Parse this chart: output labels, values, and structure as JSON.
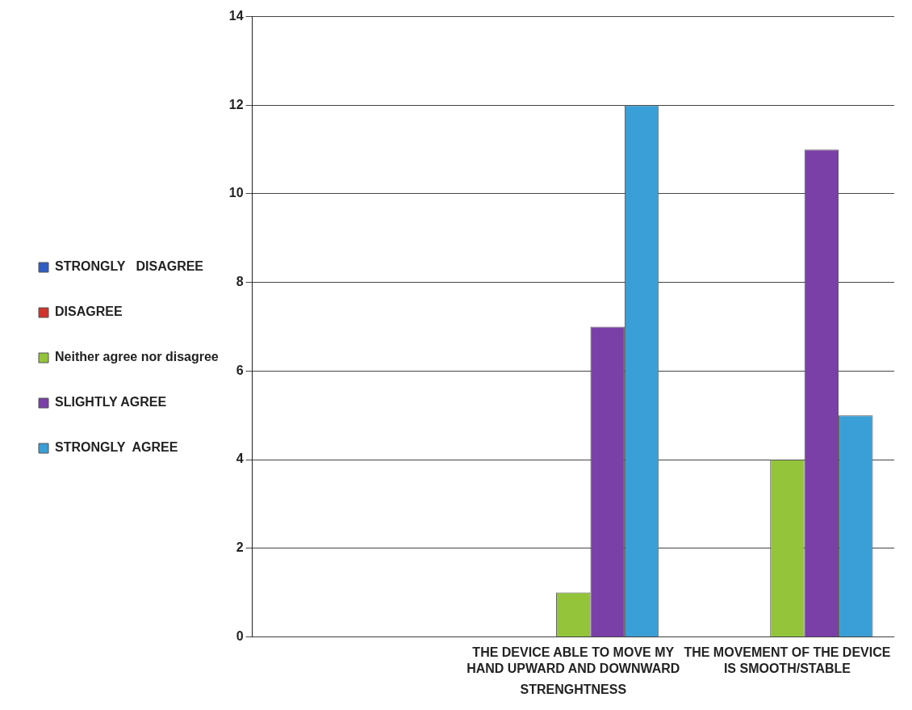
{
  "chart_data": {
    "type": "bar",
    "categories": [
      null,
      "THE DEVICE ABLE TO MOVE MY HAND UPWARD AND DOWNWARD",
      "THE MOVEMENT OF THE DEVICE IS SMOOTH/STABLE"
    ],
    "xlabel": "STRENGHTNESS",
    "series": [
      {
        "name": "STRONGLY   DISAGREE",
        "color": "#2f5fc4",
        "values": [
          0,
          0,
          0
        ]
      },
      {
        "name": "DISAGREE",
        "color": "#d0342c",
        "values": [
          0,
          0,
          0
        ]
      },
      {
        "name": "Neither agree nor disagree",
        "color": "#93c43a",
        "values": [
          0,
          1,
          4
        ]
      },
      {
        "name": "SLIGHTLY AGREE",
        "color": "#7b3fa8",
        "values": [
          0,
          7,
          11
        ]
      },
      {
        "name": "STRONGLY  AGREE",
        "color": "#3a9fd6",
        "values": [
          0,
          12,
          5
        ]
      }
    ],
    "ylim": [
      0,
      14
    ],
    "yticks": [
      0,
      2,
      4,
      6,
      8,
      10,
      12,
      14
    ],
    "grid": "y",
    "legend": "left"
  }
}
